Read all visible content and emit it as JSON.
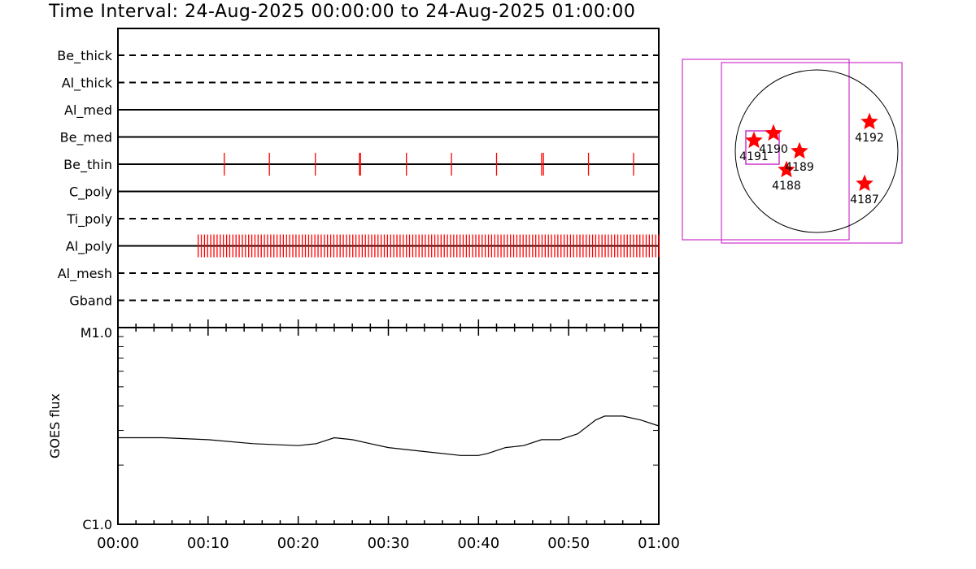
{
  "title": "Time Interval: 24-Aug-2025 00:00:00 to 24-Aug-2025 01:00:00",
  "colors": {
    "event": "#ff0000",
    "box": "#cc33cc",
    "line": "#000000"
  },
  "chart_data": [
    {
      "type": "event-timeline",
      "xlim": [
        "00:00",
        "01:00"
      ],
      "channels": [
        {
          "name": "Be_thick",
          "style": "dashed",
          "events": []
        },
        {
          "name": "Al_thick",
          "style": "dashed",
          "events": []
        },
        {
          "name": "Al_med",
          "style": "solid",
          "events": []
        },
        {
          "name": "Be_med",
          "style": "solid",
          "events": []
        },
        {
          "name": "Be_thin",
          "style": "solid",
          "events": [
            11.8,
            16.8,
            21.9,
            26.8,
            26.9,
            32.0,
            37.0,
            42.0,
            47.0,
            47.2,
            52.2,
            57.2
          ]
        },
        {
          "name": "C_poly",
          "style": "solid",
          "events": []
        },
        {
          "name": "Ti_poly",
          "style": "dashed",
          "events": []
        },
        {
          "name": "Al_poly",
          "style": "solid",
          "events_from": 8.9,
          "events_to": 60.0,
          "events_step": 0.35
        },
        {
          "name": "Al_mesh",
          "style": "dashed",
          "events": []
        },
        {
          "name": "Gband",
          "style": "dashed",
          "events": []
        }
      ]
    },
    {
      "type": "line",
      "ylabel": "GOES flux",
      "ylim_labels": [
        "C1.0",
        "M1.0"
      ],
      "y_scale": "log",
      "x": [
        0,
        5,
        10,
        15,
        20,
        22,
        24,
        26,
        28,
        30,
        34,
        38,
        40,
        41,
        43,
        45,
        47,
        49,
        51,
        53,
        54,
        56,
        58,
        60
      ],
      "y": [
        0.44,
        0.44,
        0.43,
        0.41,
        0.4,
        0.41,
        0.44,
        0.43,
        0.41,
        0.39,
        0.37,
        0.35,
        0.35,
        0.36,
        0.39,
        0.4,
        0.43,
        0.43,
        0.46,
        0.53,
        0.55,
        0.55,
        0.53,
        0.5
      ],
      "xticks": [
        "00:00",
        "00:10",
        "00:20",
        "00:30",
        "00:40",
        "00:50",
        "01:00"
      ]
    },
    {
      "type": "solar-disk-map",
      "regions": [
        {
          "label": "4187",
          "dx": 0.59,
          "dy": 0.4
        },
        {
          "label": "4188",
          "dx": -0.37,
          "dy": 0.23
        },
        {
          "label": "4189",
          "dx": -0.21,
          "dy": 0.0
        },
        {
          "label": "4190",
          "dx": -0.53,
          "dy": -0.22
        },
        {
          "label": "4191",
          "dx": -0.77,
          "dy": -0.13
        },
        {
          "label": "4192",
          "dx": 0.65,
          "dy": -0.36
        }
      ]
    }
  ]
}
